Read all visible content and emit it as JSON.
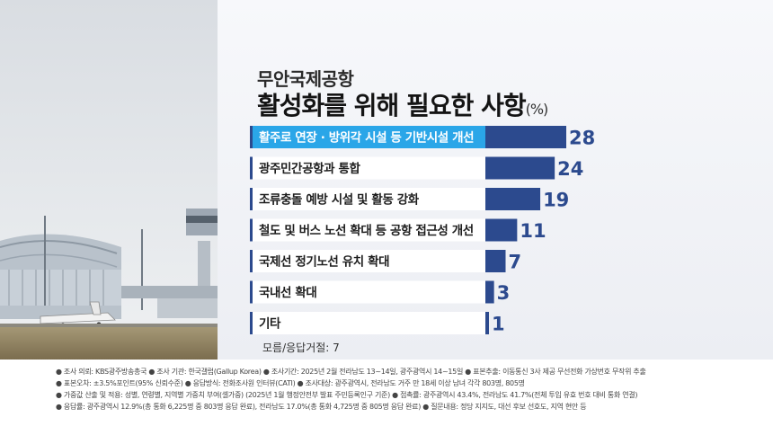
{
  "title": {
    "line1": "무안국제공항",
    "line2": "활성화를 위해 필요한 사항",
    "unit": "(%)"
  },
  "chart_data": {
    "type": "bar",
    "orientation": "horizontal",
    "categories": [
      "활주로 연장 · 방위각 시설 등 기반시설 개선",
      "광주민간공항과 통합",
      "조류충돌 예방 시설 및 활동 강화",
      "철도 및 버스 노선 확대 등 공항 접근성 개선",
      "국제선 정기노선 유치 확대",
      "국내선 확대",
      "기타"
    ],
    "values": [
      28,
      24,
      19,
      11,
      7,
      3,
      1
    ],
    "highlight_index": 0,
    "colors": {
      "bar": "#2c4a8e",
      "highlight": "#2aa6e8",
      "label_bg": "#ffffff",
      "value": "#2c4a8e"
    },
    "xlim": [
      0,
      28
    ]
  },
  "note": "모름/응답거절: 7",
  "footer": {
    "line1": "● 조사 의뢰: KBS광주방송총국   ● 조사 기관: 한국갤럽(Gallup Korea)   ● 조사기간: 2025년 2월 전라남도 13~14일, 광주광역시 14~15일   ● 표본추출: 이동통신 3사 제공 무선전화 가상번호 무작위 추출",
    "line2": "● 표본오차: ±3.5%포인트(95% 신뢰수준)   ● 응답방식: 전화조사원 인터뷰(CATI)   ● 조사대상: 광주광역시, 전라남도 거주 만 18세 이상 남녀 각각 803명, 805명",
    "line3": "● 가중값 산출 및 적용: 성별, 연령별, 지역별 가중치 부여(셀가중) (2025년 1월 행정안전부 발표 주민등록인구 기준)   ● 접촉률: 광주광역시 43.4%, 전라남도 41.7%(전체 투입 유효 번호 대비 통화 연결)",
    "line4": "● 응답률: 광주광역시 12.9%(총 통화 6,225명 중 803명 응답 완료), 전라남도 17.0%(총 통화 4,725명 중 805명 응답 완료)   ● 질문내용: 정당 지지도, 대선 후보 선호도, 지역 현안 등"
  }
}
